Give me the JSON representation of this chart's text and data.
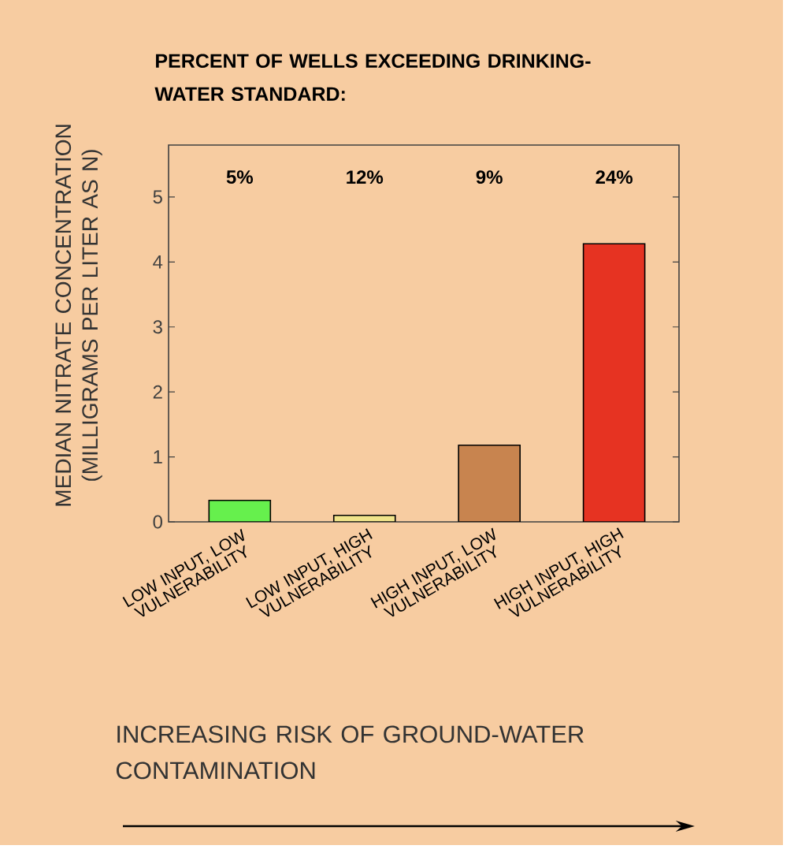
{
  "chart_data": {
    "type": "bar",
    "title": "PERCENT OF WELLS EXCEEDING DRINKING-WATER STANDARD:",
    "xlabel": "INCREASING RISK OF GROUND-WATER CONTAMINATION",
    "ylabel": "MEDIAN NITRATE CONCENTRATION (MILLIGRAMS PER LITER AS N)",
    "categories": [
      "LOW INPUT, LOW VULNERABILITY",
      "LOW INPUT, HIGH VULNERABILITY",
      "HIGH INPUT, LOW VULNERABILITY",
      "HIGH INPUT, HIGH VULNERABILITY"
    ],
    "values": [
      0.33,
      0.1,
      1.18,
      4.28
    ],
    "colors": [
      "#66f04d",
      "#f0e48a",
      "#c8844f",
      "#e63322"
    ],
    "annotations": [
      "5%",
      "12%",
      "9%",
      "24%"
    ],
    "ylim": [
      0,
      5.8
    ],
    "yticks": [
      0,
      1,
      2,
      3,
      4,
      5
    ]
  }
}
